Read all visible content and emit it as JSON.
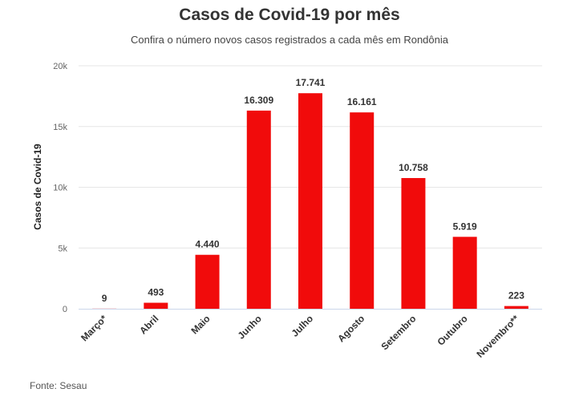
{
  "title": "Casos de Covid-19 por mês",
  "subtitle": "Confira o número novos casos registrados a cada mês em Rondônia",
  "source": "Fonte: Sesau",
  "colors": {
    "bar": "#f10b0b",
    "grid": "#e6e6e6",
    "axis": "#ccd6eb"
  },
  "chart_data": {
    "type": "bar",
    "title": "Casos de Covid-19 por mês",
    "subtitle": "Confira o número novos casos registrados a cada mês em Rondônia",
    "xlabel": "",
    "ylabel": "Casos de Covid-19",
    "ylim": [
      0,
      20000
    ],
    "yticks": [
      0,
      5000,
      10000,
      15000,
      20000
    ],
    "yticklabels": [
      "0",
      "5k",
      "10k",
      "15k",
      "20k"
    ],
    "grid": true,
    "categories": [
      "Março*",
      "Abril",
      "Maio",
      "Junho",
      "Julho",
      "Agosto",
      "Setembro",
      "Outubro",
      "Novembro**"
    ],
    "values": [
      9,
      493,
      4440,
      16309,
      17741,
      16161,
      10758,
      5919,
      223
    ],
    "data_labels": [
      "9",
      "493",
      "4.440",
      "16.309",
      "17.741",
      "16.161",
      "10.758",
      "5.919",
      "223"
    ]
  }
}
